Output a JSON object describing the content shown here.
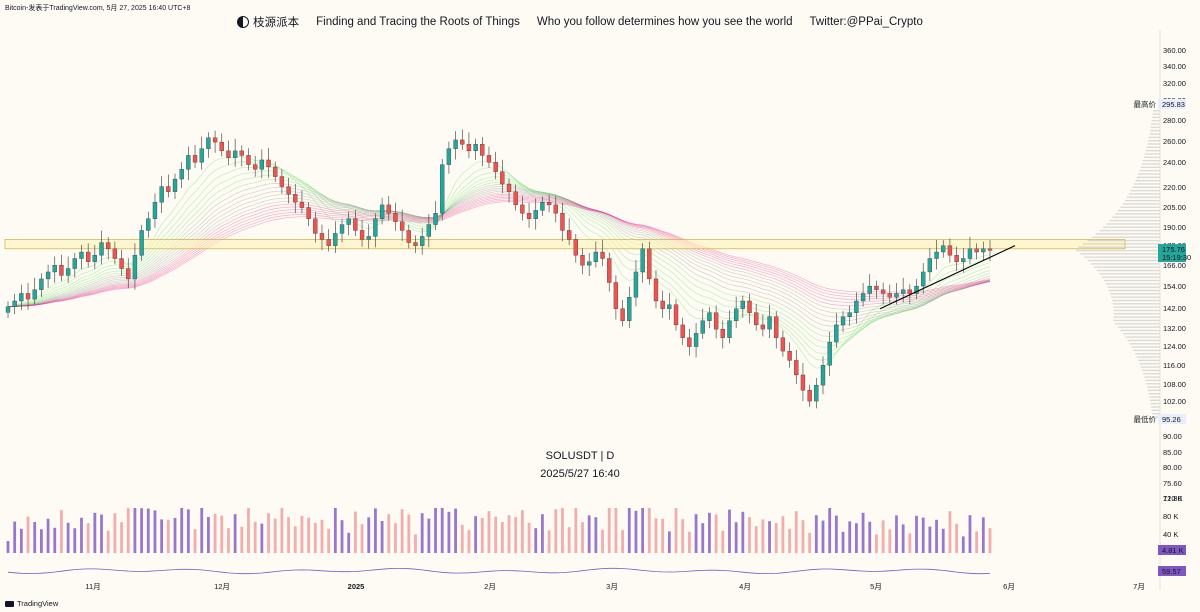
{
  "header": {
    "caption": "Bitcoin-发表于TradingView.com,  5月 27, 2025 16:40 UTC+8",
    "banner": [
      "枝源派本",
      "Finding and Tracing the Roots of Things",
      "Who you follow determines how you see the world",
      "Twitter:@PPai_Crypto"
    ]
  },
  "symbol": "SOLUSDT | D",
  "datetime": "2025/5/27 16:40",
  "footer": {
    "brand": "TradingView"
  },
  "colors": {
    "up": "#26a69a",
    "down": "#ef5350",
    "band_green": "#4cdb4c",
    "band_pink": "#e8288c",
    "band_gray": "#8a8a8a",
    "resistance_line": "#c9a227",
    "trendline": "#000000",
    "vol_up": "#7e57c2",
    "vol_down": "#ef9a9a",
    "rsi": "#7e57c2"
  },
  "chart_data": {
    "type": "candlestick",
    "price_axis_ticks": [
      360,
      340,
      320,
      300,
      280,
      260,
      240,
      220,
      205,
      190,
      178,
      166,
      154,
      142,
      132,
      124,
      116,
      108,
      102,
      96,
      90,
      85,
      80,
      75.6,
      71.8
    ],
    "price_axis_labels": [
      "360.00",
      "340.00",
      "320.00",
      "300.00",
      "280.00",
      "260.00",
      "240.00",
      "220.00",
      "205.00",
      "190.00",
      "178.00",
      "166.00",
      "154.00",
      "142.00",
      "132.00",
      "124.00",
      "116.00",
      "108.00",
      "102.00",
      "96.00",
      "90.00",
      "85.00",
      "80.00",
      "75.60",
      "71.80"
    ],
    "time_axis_labels": [
      "11月",
      "12月",
      "2025",
      "2月",
      "3月",
      "4月",
      "5月",
      "6月",
      "7月"
    ],
    "highest_label": "最高价",
    "highest_value": "295.83",
    "lowest_label": "最低价",
    "lowest_value": "95.26",
    "last_price": "175.76",
    "countdown": "15:19:30",
    "resistance_zone": [
      176,
      182
    ],
    "volume_axis_labels": [
      "120 K",
      "80 K",
      "40 K"
    ],
    "last_volume": "4.81 K",
    "rsi_value": "59.57",
    "closes": [
      143,
      146,
      150,
      147,
      152,
      158,
      162,
      166,
      160,
      164,
      170,
      174,
      168,
      172,
      180,
      176,
      170,
      164,
      158,
      172,
      188,
      196,
      208,
      220,
      216,
      226,
      234,
      246,
      240,
      252,
      262,
      258,
      250,
      244,
      250,
      246,
      238,
      234,
      242,
      236,
      228,
      220,
      214,
      208,
      204,
      196,
      186,
      182,
      178,
      186,
      192,
      196,
      188,
      182,
      184,
      196,
      206,
      200,
      194,
      188,
      180,
      178,
      184,
      192,
      200,
      238,
      252,
      260,
      256,
      250,
      256,
      246,
      240,
      232,
      222,
      216,
      206,
      200,
      196,
      202,
      208,
      206,
      200,
      188,
      182,
      172,
      166,
      168,
      174,
      170,
      156,
      142,
      136,
      148,
      162,
      176,
      158,
      146,
      142,
      144,
      134,
      128,
      124,
      130,
      136,
      140,
      132,
      128,
      136,
      142,
      146,
      140,
      134,
      132,
      138,
      128,
      122,
      118,
      112,
      106,
      102,
      108,
      116,
      126,
      134,
      138,
      140,
      146,
      150,
      154,
      152,
      150,
      148,
      150,
      152,
      150,
      154,
      162,
      170,
      174,
      178,
      172,
      168,
      170,
      176,
      174,
      176,
      175
    ]
  }
}
